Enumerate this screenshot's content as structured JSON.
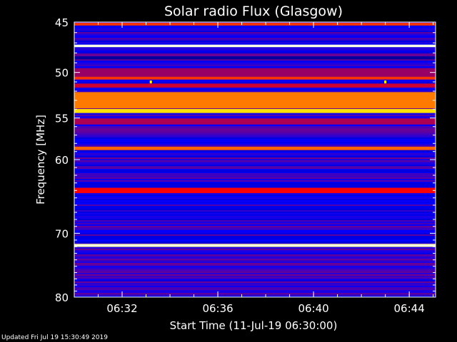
{
  "chart_data": {
    "type": "heatmap",
    "title": "Solar radio Flux (Glasgow)",
    "xlabel": "Start Time (11-Jul-19 06:30:00)",
    "ylabel": "Frequency [MHz]",
    "x_unit": "minutes after 06:30:00",
    "xlim": [
      0,
      15.1
    ],
    "ylim": [
      45,
      80
    ],
    "y_scale": "log",
    "x_ticks": [
      {
        "value": 2,
        "label": "06:32"
      },
      {
        "value": 6,
        "label": "06:36"
      },
      {
        "value": 10,
        "label": "06:40"
      },
      {
        "value": 14,
        "label": "06:44"
      }
    ],
    "y_ticks": [
      {
        "value": 45,
        "label": "45"
      },
      {
        "value": 50,
        "label": "50"
      },
      {
        "value": 55,
        "label": "55"
      },
      {
        "value": 60,
        "label": "60"
      },
      {
        "value": 70,
        "label": "70"
      },
      {
        "value": 80,
        "label": "80"
      }
    ],
    "colormap": [
      "#000044",
      "#0000ff",
      "#ff0000",
      "#ffff00",
      "#ffffff"
    ],
    "background_level": 0.28,
    "bands": [
      {
        "freq": 45.2,
        "width": 0.25,
        "level": 0.55
      },
      {
        "freq": 47.3,
        "width": 0.25,
        "level": 0.95
      },
      {
        "freq": 48.5,
        "width": 0.3,
        "level": 0.12
      },
      {
        "freq": 50.0,
        "width": 0.9,
        "level": 0.4
      },
      {
        "freq": 50.6,
        "width": 0.3,
        "level": 0.55
      },
      {
        "freq": 51.4,
        "width": 0.4,
        "level": 0.45
      },
      {
        "freq": 53.0,
        "width": 1.8,
        "level": 0.62
      },
      {
        "freq": 54.2,
        "width": 0.45,
        "level": 0.72
      },
      {
        "freq": 55.4,
        "width": 0.7,
        "level": 0.42
      },
      {
        "freq": 58.6,
        "width": 0.4,
        "level": 0.6
      },
      {
        "freq": 64.0,
        "width": 0.7,
        "level": 0.5
      },
      {
        "freq": 71.8,
        "width": 0.45,
        "level": 0.9
      }
    ],
    "point_sources": [
      {
        "time": 3.2,
        "freq": 51.0,
        "level": 0.75
      },
      {
        "time": 13.0,
        "freq": 51.0,
        "level": 0.75
      }
    ]
  },
  "footer": {
    "updated": "Updated Fri Jul 19 15:30:49 2019"
  }
}
